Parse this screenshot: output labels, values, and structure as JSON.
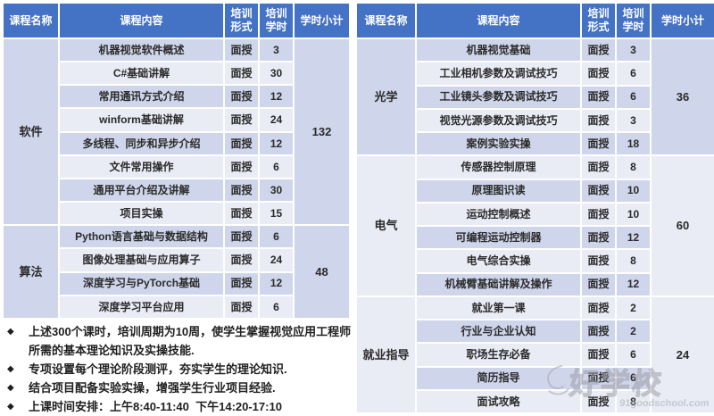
{
  "tables": [
    {
      "headers": [
        "课程名称",
        "课程内容",
        "培训形式",
        "培训学时",
        "学时小计"
      ],
      "groups": [
        {
          "name": "软件",
          "subtotal": "132",
          "rows": [
            {
              "content": "机器视觉软件概述",
              "form": "面授",
              "hours": "3"
            },
            {
              "content": "C#基础讲解",
              "form": "面授",
              "hours": "30"
            },
            {
              "content": "常用通讯方式介绍",
              "form": "面授",
              "hours": "12"
            },
            {
              "content": "winform基础讲解",
              "form": "面授",
              "hours": "24"
            },
            {
              "content": "多线程、同步和异步介绍",
              "form": "面授",
              "hours": "12"
            },
            {
              "content": "文件常用操作",
              "form": "面授",
              "hours": "6"
            },
            {
              "content": "通用平台介绍及讲解",
              "form": "面授",
              "hours": "30"
            },
            {
              "content": "项目实操",
              "form": "面授",
              "hours": "15"
            }
          ]
        },
        {
          "name": "算法",
          "subtotal": "48",
          "rows": [
            {
              "content": "Python语言基础与数据结构",
              "form": "面授",
              "hours": "6"
            },
            {
              "content": "图像处理基础与应用算子",
              "form": "面授",
              "hours": "24"
            },
            {
              "content": "深度学习与PyTorch基础",
              "form": "面授",
              "hours": "12"
            },
            {
              "content": "深度学习平台应用",
              "form": "面授",
              "hours": "6"
            }
          ]
        }
      ]
    },
    {
      "headers": [
        "课程名称",
        "课程内容",
        "培训形式",
        "培训学时",
        "学时小计"
      ],
      "groups": [
        {
          "name": "光学",
          "subtotal": "36",
          "rows": [
            {
              "content": "机器视觉基础",
              "form": "面授",
              "hours": "3"
            },
            {
              "content": "工业相机参数及调试技巧",
              "form": "面授",
              "hours": "6"
            },
            {
              "content": "工业镜头参数及调试技巧",
              "form": "面授",
              "hours": "6"
            },
            {
              "content": "视觉光源参数及调试技巧",
              "form": "面授",
              "hours": "3"
            },
            {
              "content": "案例实验实操",
              "form": "面授",
              "hours": "18"
            }
          ]
        },
        {
          "name": "电气",
          "subtotal": "60",
          "rows": [
            {
              "content": "传感器控制原理",
              "form": "面授",
              "hours": "8"
            },
            {
              "content": "原理图识读",
              "form": "面授",
              "hours": "10"
            },
            {
              "content": "运动控制概述",
              "form": "面授",
              "hours": "10"
            },
            {
              "content": "可编程运动控制器",
              "form": "面授",
              "hours": "12"
            },
            {
              "content": "电气综合实操",
              "form": "面授",
              "hours": "8"
            },
            {
              "content": "机械臂基础讲解及操作",
              "form": "面授",
              "hours": "12"
            }
          ]
        },
        {
          "name": "就业指导",
          "subtotal": "24",
          "rows": [
            {
              "content": "就业第一课",
              "form": "面授",
              "hours": "2"
            },
            {
              "content": "行业与企业认知",
              "form": "面授",
              "hours": "2"
            },
            {
              "content": "职场生存必备",
              "form": "面授",
              "hours": "6"
            },
            {
              "content": "简历指导",
              "form": "面授",
              "hours": "6"
            },
            {
              "content": "面试攻略",
              "form": "面授",
              "hours": "8"
            }
          ]
        }
      ]
    }
  ],
  "notes": {
    "bullet": "◆",
    "items": [
      "上述300个课时，培训周期为10周，使学生掌握视觉应用工程师所需的基本理论知识及实操技能.",
      "专项设置每个理论阶段测评，夯实学生的理论知识.",
      "结合项目配备实验实操，增强学生行业项目经验.",
      "上课时间安排：上午8:40-11:40  下午14:20-17:10"
    ]
  },
  "watermark": {
    "logo_text": "好学校",
    "url_text": "91goodschool.com"
  },
  "colors": {
    "header_bg": "#4472c4",
    "band_dark": "#cfd5ea",
    "band_light": "#e9ebf5",
    "header_text": "#ffffff",
    "cell_text": "#2b2b2b",
    "watermark": "#9d9da8"
  }
}
